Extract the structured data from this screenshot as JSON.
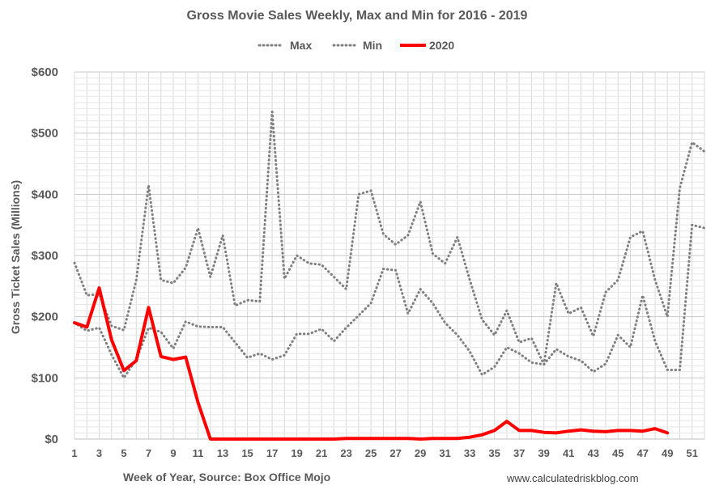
{
  "chart_data": {
    "type": "line",
    "title": "Gross Movie Sales Weekly, Max and Min for 2016 - 2019",
    "xlabel": "Week of Year, Source: Box Office Mojo",
    "ylabel": "Gross Ticket Sales (Millions)",
    "credit": "www.calculatedriskblog.com",
    "xlim": [
      1,
      52
    ],
    "ylim": [
      0,
      600
    ],
    "x_ticks": [
      1,
      3,
      5,
      7,
      9,
      11,
      13,
      15,
      17,
      19,
      21,
      23,
      25,
      27,
      29,
      31,
      33,
      35,
      37,
      39,
      41,
      43,
      45,
      47,
      49,
      51
    ],
    "y_ticks": [
      {
        "value": 0,
        "label": "$0"
      },
      {
        "value": 100,
        "label": "$100"
      },
      {
        "value": 200,
        "label": "$200"
      },
      {
        "value": 300,
        "label": "$300"
      },
      {
        "value": 400,
        "label": "$400"
      },
      {
        "value": 500,
        "label": "$500"
      },
      {
        "value": 600,
        "label": "$600"
      }
    ],
    "grid": true,
    "legend_position": "top",
    "series": [
      {
        "name": "Max",
        "color": "#7f7f7f",
        "style": "dotted",
        "x": [
          1,
          2,
          3,
          4,
          5,
          6,
          7,
          8,
          9,
          10,
          11,
          12,
          13,
          14,
          15,
          16,
          17,
          18,
          19,
          20,
          21,
          22,
          23,
          24,
          25,
          26,
          27,
          28,
          29,
          30,
          31,
          32,
          33,
          34,
          35,
          36,
          37,
          38,
          39,
          40,
          41,
          42,
          43,
          44,
          45,
          46,
          47,
          48,
          49,
          50,
          51,
          52
        ],
        "values": [
          288,
          235,
          237,
          185,
          178,
          260,
          415,
          260,
          255,
          280,
          345,
          265,
          333,
          218,
          227,
          225,
          535,
          262,
          300,
          287,
          285,
          265,
          245,
          400,
          406,
          335,
          318,
          333,
          388,
          303,
          287,
          330,
          260,
          195,
          170,
          210,
          158,
          165,
          122,
          255,
          205,
          215,
          168,
          240,
          260,
          330,
          340,
          260,
          200,
          410,
          485,
          470
        ]
      },
      {
        "name": "Min",
        "color": "#7f7f7f",
        "style": "dotted",
        "x": [
          1,
          2,
          3,
          4,
          5,
          6,
          7,
          8,
          9,
          10,
          11,
          12,
          13,
          14,
          15,
          16,
          17,
          18,
          19,
          20,
          21,
          22,
          23,
          24,
          25,
          26,
          27,
          28,
          29,
          30,
          31,
          32,
          33,
          34,
          35,
          36,
          37,
          38,
          39,
          40,
          41,
          42,
          43,
          44,
          45,
          46,
          47,
          48,
          49,
          50,
          51,
          52
        ],
        "values": [
          190,
          177,
          182,
          138,
          100,
          130,
          182,
          175,
          148,
          192,
          184,
          183,
          183,
          158,
          133,
          140,
          130,
          137,
          172,
          172,
          180,
          160,
          182,
          202,
          222,
          278,
          276,
          205,
          245,
          222,
          190,
          170,
          143,
          105,
          118,
          150,
          140,
          125,
          122,
          147,
          135,
          128,
          110,
          123,
          170,
          150,
          235,
          160,
          113,
          113,
          350,
          345
        ]
      },
      {
        "name": "2020",
        "color": "#ff0000",
        "style": "solid",
        "x": [
          1,
          2,
          3,
          4,
          5,
          6,
          7,
          8,
          9,
          10,
          11,
          12,
          13,
          14,
          15,
          16,
          17,
          18,
          19,
          20,
          21,
          22,
          23,
          24,
          25,
          26,
          27,
          28,
          29,
          30,
          31,
          32,
          33,
          34,
          35,
          36,
          37,
          38,
          39,
          40,
          41,
          42,
          43,
          44,
          45,
          46,
          47,
          48,
          49
        ],
        "values": [
          190,
          183,
          247,
          162,
          112,
          128,
          215,
          135,
          130,
          134,
          60,
          0,
          0,
          0,
          0,
          0,
          0,
          0,
          0,
          0,
          0,
          0,
          1,
          1,
          1,
          1,
          1,
          1,
          0,
          1,
          1,
          1,
          3,
          7,
          14,
          29,
          14,
          14,
          11,
          10,
          13,
          15,
          13,
          12,
          14,
          14,
          13,
          17,
          10
        ]
      }
    ]
  }
}
